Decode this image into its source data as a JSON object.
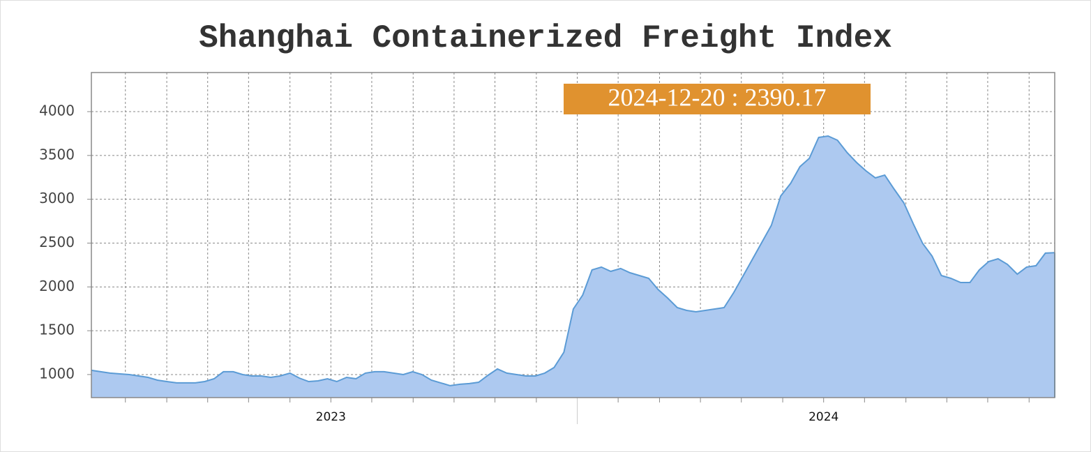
{
  "chart_data": {
    "type": "area",
    "title": "Shanghai Containerized Freight Index",
    "annotation": "2024-12-20 : 2390.17",
    "x": [
      2023.014,
      2023.033,
      2023.052,
      2023.072,
      2023.091,
      2023.11,
      2023.129,
      2023.148,
      2023.167,
      2023.187,
      2023.206,
      2023.225,
      2023.244,
      2023.263,
      2023.282,
      2023.302,
      2023.321,
      2023.34,
      2023.359,
      2023.378,
      2023.397,
      2023.417,
      2023.436,
      2023.455,
      2023.474,
      2023.493,
      2023.512,
      2023.532,
      2023.551,
      2023.57,
      2023.589,
      2023.608,
      2023.627,
      2023.647,
      2023.666,
      2023.685,
      2023.704,
      2023.723,
      2023.742,
      2023.762,
      2023.781,
      2023.8,
      2023.819,
      2023.838,
      2023.857,
      2023.877,
      2023.896,
      2023.915,
      2023.934,
      2023.953,
      2023.973,
      2023.992,
      2024.011,
      2024.03,
      2024.049,
      2024.068,
      2024.088,
      2024.107,
      2024.126,
      2024.145,
      2024.164,
      2024.183,
      2024.203,
      2024.222,
      2024.241,
      2024.26,
      2024.279,
      2024.298,
      2024.318,
      2024.337,
      2024.356,
      2024.375,
      2024.394,
      2024.413,
      2024.433,
      2024.452,
      2024.471,
      2024.49,
      2024.509,
      2024.528,
      2024.548,
      2024.567,
      2024.586,
      2024.605,
      2024.624,
      2024.643,
      2024.663,
      2024.682,
      2024.701,
      2024.72,
      2024.739,
      2024.758,
      2024.778,
      2024.797,
      2024.816,
      2024.835,
      2024.854,
      2024.873,
      2024.893,
      2024.912,
      2024.931,
      2024.95,
      2024.969
    ],
    "values": [
      1048,
      1032,
      1016,
      1008,
      1000,
      984,
      968,
      936,
      920,
      905,
      905,
      905,
      920,
      952,
      1032,
      1032,
      1000,
      984,
      984,
      968,
      984,
      1016,
      960,
      920,
      928,
      952,
      920,
      968,
      952,
      1016,
      1032,
      1032,
      1016,
      1000,
      1032,
      1000,
      936,
      905,
      873,
      889,
      897,
      912,
      992,
      1064,
      1016,
      1000,
      984,
      984,
      1016,
      1080,
      1255,
      1748,
      1907,
      2194,
      2226,
      2178,
      2210,
      2162,
      2130,
      2098,
      1971,
      1875,
      1764,
      1732,
      1716,
      1732,
      1748,
      1764,
      1939,
      2130,
      2321,
      2512,
      2703,
      3037,
      3181,
      3372,
      3467,
      3706,
      3722,
      3674,
      3531,
      3419,
      3324,
      3244,
      3276,
      3117,
      2958,
      2719,
      2496,
      2353,
      2130,
      2098,
      2050,
      2050,
      2194,
      2289,
      2321,
      2257,
      2146,
      2226,
      2242,
      2385,
      2390.17
    ],
    "color": "#5b9bd5",
    "fill_color": "#adc9f0",
    "xlim": [
      2023.014,
      2024.969
    ],
    "xticks": [
      {
        "value": 2023.5,
        "label": "2023"
      },
      {
        "value": 2024.5,
        "label": "2024"
      }
    ],
    "xminor_ticks": [
      2023.083,
      2023.167,
      2023.25,
      2023.333,
      2023.417,
      2023.5,
      2023.583,
      2023.667,
      2023.75,
      2023.833,
      2023.917,
      2024,
      2024.083,
      2024.167,
      2024.25,
      2024.333,
      2024.417,
      2024.5,
      2024.583,
      2024.667,
      2024.75,
      2024.833,
      2024.917
    ],
    "year_divider": 2024,
    "ylim": [
      737,
      4446
    ],
    "yticks": [
      1000,
      1500,
      2000,
      2500,
      3000,
      3500,
      4000
    ],
    "grid": true
  }
}
